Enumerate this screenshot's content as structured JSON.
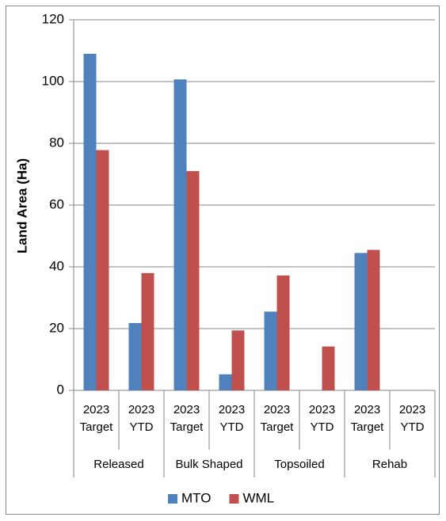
{
  "chart_data": {
    "type": "bar",
    "y_label": "Land Area (Ha)",
    "categories": [
      "2023 Target",
      "2023 YTD",
      "2023 Target",
      "2023 YTD",
      "2023 Target",
      "2023 YTD",
      "2023 Target",
      "2023 YTD"
    ],
    "groups": [
      "Released",
      "Bulk Shaped",
      "Topsoiled",
      "Rehab"
    ],
    "series": [
      {
        "name": "MTO",
        "color": "#4f81bd",
        "values": [
          109,
          21.8,
          100.7,
          5.2,
          25.5,
          null,
          44.5,
          null
        ]
      },
      {
        "name": "WML",
        "color": "#c0504d",
        "values": [
          77.8,
          38,
          71,
          19.4,
          37.2,
          14.2,
          45.5,
          null
        ]
      }
    ],
    "ylim": [
      0,
      120
    ],
    "yticks": [
      0,
      20,
      40,
      60,
      80,
      100,
      120
    ],
    "grid": true,
    "legend": "bottom"
  }
}
